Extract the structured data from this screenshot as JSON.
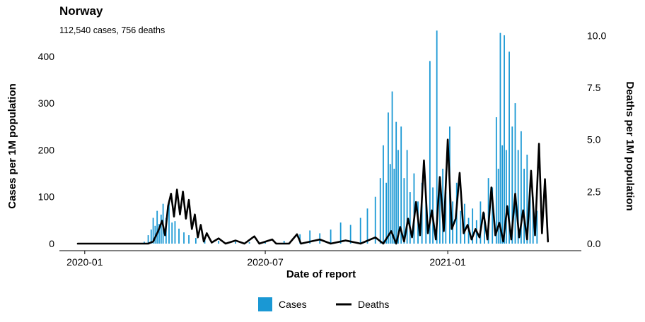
{
  "chart_data": {
    "type": "bar+line",
    "title": "Norway",
    "subtitle": "112,540 cases, 756 deaths",
    "xlabel": "Date of report",
    "ylabel_left": "Cases per 1M population",
    "ylabel_right": "Deaths per 1M population",
    "x_range": [
      "2019-12-25",
      "2021-04-30"
    ],
    "x_ticks": [
      {
        "date": "2020-01-01",
        "label": "2020-01"
      },
      {
        "date": "2020-07-01",
        "label": "2020-07"
      },
      {
        "date": "2021-01-01",
        "label": "2021-01"
      }
    ],
    "ylim_left": [
      0,
      460
    ],
    "yticks_left": [
      0,
      100,
      200,
      300,
      400
    ],
    "ylim_right": [
      0,
      10.35
    ],
    "yticks_right": [
      "0.0",
      "2.5",
      "5.0",
      "7.5",
      "10.0"
    ],
    "grid": false,
    "legend_position": "bottom",
    "colors": {
      "cases": "#1a98d4",
      "deaths": "#000000"
    },
    "series": [
      {
        "name": "Cases",
        "kind": "bar",
        "axis": "left",
        "points": [
          [
            "2020-02-26",
            0
          ],
          [
            "2020-03-01",
            4
          ],
          [
            "2020-03-05",
            18
          ],
          [
            "2020-03-08",
            30
          ],
          [
            "2020-03-10",
            55
          ],
          [
            "2020-03-12",
            38
          ],
          [
            "2020-03-14",
            70
          ],
          [
            "2020-03-16",
            42
          ],
          [
            "2020-03-18",
            62
          ],
          [
            "2020-03-20",
            85
          ],
          [
            "2020-03-23",
            55
          ],
          [
            "2020-03-26",
            88
          ],
          [
            "2020-03-29",
            45
          ],
          [
            "2020-04-01",
            48
          ],
          [
            "2020-04-05",
            32
          ],
          [
            "2020-04-10",
            24
          ],
          [
            "2020-04-15",
            18
          ],
          [
            "2020-04-22",
            12
          ],
          [
            "2020-05-01",
            9
          ],
          [
            "2020-05-15",
            6
          ],
          [
            "2020-06-01",
            4
          ],
          [
            "2020-06-15",
            3
          ],
          [
            "2020-07-01",
            3
          ],
          [
            "2020-07-20",
            6
          ],
          [
            "2020-08-05",
            20
          ],
          [
            "2020-08-15",
            28
          ],
          [
            "2020-08-25",
            22
          ],
          [
            "2020-09-05",
            30
          ],
          [
            "2020-09-15",
            45
          ],
          [
            "2020-09-25",
            40
          ],
          [
            "2020-10-05",
            55
          ],
          [
            "2020-10-12",
            75
          ],
          [
            "2020-10-20",
            100
          ],
          [
            "2020-10-25",
            140
          ],
          [
            "2020-10-28",
            210
          ],
          [
            "2020-10-31",
            130
          ],
          [
            "2020-11-02",
            280
          ],
          [
            "2020-11-04",
            170
          ],
          [
            "2020-11-06",
            325
          ],
          [
            "2020-11-08",
            160
          ],
          [
            "2020-11-10",
            260
          ],
          [
            "2020-11-12",
            200
          ],
          [
            "2020-11-15",
            250
          ],
          [
            "2020-11-18",
            140
          ],
          [
            "2020-11-21",
            200
          ],
          [
            "2020-11-24",
            110
          ],
          [
            "2020-11-28",
            150
          ],
          [
            "2020-12-02",
            90
          ],
          [
            "2020-12-06",
            130
          ],
          [
            "2020-12-10",
            95
          ],
          [
            "2020-12-14",
            390
          ],
          [
            "2020-12-17",
            120
          ],
          [
            "2020-12-21",
            455
          ],
          [
            "2020-12-24",
            130
          ],
          [
            "2020-12-27",
            160
          ],
          [
            "2020-12-30",
            110
          ],
          [
            "2021-01-03",
            250
          ],
          [
            "2021-01-06",
            90
          ],
          [
            "2021-01-10",
            130
          ],
          [
            "2021-01-14",
            70
          ],
          [
            "2021-01-18",
            85
          ],
          [
            "2021-01-22",
            55
          ],
          [
            "2021-01-26",
            75
          ],
          [
            "2021-01-30",
            50
          ],
          [
            "2021-02-03",
            90
          ],
          [
            "2021-02-07",
            65
          ],
          [
            "2021-02-11",
            140
          ],
          [
            "2021-02-15",
            120
          ],
          [
            "2021-02-19",
            270
          ],
          [
            "2021-02-21",
            160
          ],
          [
            "2021-02-23",
            450
          ],
          [
            "2021-02-25",
            210
          ],
          [
            "2021-02-27",
            445
          ],
          [
            "2021-03-01",
            200
          ],
          [
            "2021-03-04",
            410
          ],
          [
            "2021-03-07",
            250
          ],
          [
            "2021-03-10",
            300
          ],
          [
            "2021-03-13",
            200
          ],
          [
            "2021-03-16",
            240
          ],
          [
            "2021-03-19",
            160
          ],
          [
            "2021-03-22",
            190
          ],
          [
            "2021-03-25",
            120
          ],
          [
            "2021-03-28",
            100
          ],
          [
            "2021-04-01",
            70
          ]
        ]
      },
      {
        "name": "Deaths",
        "kind": "line",
        "axis": "right",
        "points": [
          [
            "2019-12-25",
            0
          ],
          [
            "2020-03-05",
            0
          ],
          [
            "2020-03-10",
            0.1
          ],
          [
            "2020-03-15",
            0.6
          ],
          [
            "2020-03-19",
            1.1
          ],
          [
            "2020-03-22",
            0.4
          ],
          [
            "2020-03-25",
            1.8
          ],
          [
            "2020-03-28",
            2.4
          ],
          [
            "2020-03-31",
            1.3
          ],
          [
            "2020-04-03",
            2.6
          ],
          [
            "2020-04-06",
            1.4
          ],
          [
            "2020-04-09",
            2.5
          ],
          [
            "2020-04-12",
            1.2
          ],
          [
            "2020-04-15",
            2.1
          ],
          [
            "2020-04-18",
            0.7
          ],
          [
            "2020-04-21",
            1.4
          ],
          [
            "2020-04-24",
            0.3
          ],
          [
            "2020-04-27",
            0.9
          ],
          [
            "2020-04-30",
            0.1
          ],
          [
            "2020-05-03",
            0.5
          ],
          [
            "2020-05-08",
            0.05
          ],
          [
            "2020-05-15",
            0.25
          ],
          [
            "2020-05-22",
            0
          ],
          [
            "2020-06-01",
            0.15
          ],
          [
            "2020-06-10",
            0
          ],
          [
            "2020-06-20",
            0.35
          ],
          [
            "2020-06-25",
            0
          ],
          [
            "2020-07-08",
            0.2
          ],
          [
            "2020-07-12",
            0
          ],
          [
            "2020-07-25",
            0
          ],
          [
            "2020-08-02",
            0.45
          ],
          [
            "2020-08-06",
            0
          ],
          [
            "2020-08-25",
            0.2
          ],
          [
            "2020-09-05",
            0
          ],
          [
            "2020-09-20",
            0.15
          ],
          [
            "2020-10-05",
            0
          ],
          [
            "2020-10-20",
            0.3
          ],
          [
            "2020-10-28",
            0
          ],
          [
            "2020-11-05",
            0.6
          ],
          [
            "2020-11-10",
            0
          ],
          [
            "2020-11-14",
            0.8
          ],
          [
            "2020-11-18",
            0.1
          ],
          [
            "2020-11-22",
            1.2
          ],
          [
            "2020-11-26",
            0.3
          ],
          [
            "2020-11-30",
            2.0
          ],
          [
            "2020-12-04",
            0.4
          ],
          [
            "2020-12-08",
            4.0
          ],
          [
            "2020-12-12",
            0.5
          ],
          [
            "2020-12-16",
            1.6
          ],
          [
            "2020-12-20",
            0.2
          ],
          [
            "2020-12-24",
            3.2
          ],
          [
            "2020-12-28",
            0.6
          ],
          [
            "2021-01-01",
            5.0
          ],
          [
            "2021-01-05",
            0.7
          ],
          [
            "2021-01-09",
            1.2
          ],
          [
            "2021-01-13",
            3.4
          ],
          [
            "2021-01-17",
            0.5
          ],
          [
            "2021-01-21",
            0.9
          ],
          [
            "2021-01-25",
            0.2
          ],
          [
            "2021-01-29",
            0.7
          ],
          [
            "2021-02-02",
            0.3
          ],
          [
            "2021-02-06",
            1.5
          ],
          [
            "2021-02-10",
            0.2
          ],
          [
            "2021-02-14",
            2.7
          ],
          [
            "2021-02-18",
            0.4
          ],
          [
            "2021-02-22",
            1.0
          ],
          [
            "2021-02-26",
            0.1
          ],
          [
            "2021-03-02",
            1.8
          ],
          [
            "2021-03-06",
            0.2
          ],
          [
            "2021-03-10",
            2.4
          ],
          [
            "2021-03-14",
            0.3
          ],
          [
            "2021-03-18",
            1.6
          ],
          [
            "2021-03-22",
            0.2
          ],
          [
            "2021-03-26",
            3.5
          ],
          [
            "2021-03-30",
            0.4
          ],
          [
            "2021-04-03",
            4.8
          ],
          [
            "2021-04-06",
            0.5
          ],
          [
            "2021-04-09",
            3.1
          ],
          [
            "2021-04-12",
            0.1
          ]
        ]
      }
    ]
  }
}
